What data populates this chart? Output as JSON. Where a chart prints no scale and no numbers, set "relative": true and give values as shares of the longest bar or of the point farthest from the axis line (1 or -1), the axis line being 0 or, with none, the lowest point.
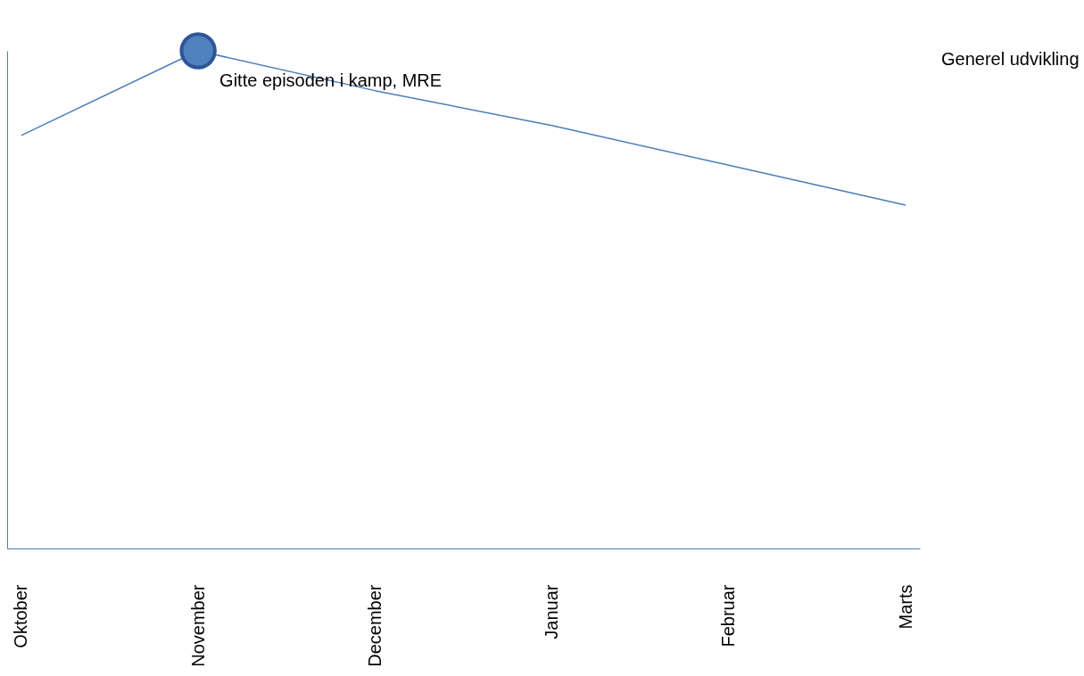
{
  "chart_data": {
    "type": "line",
    "relative": true,
    "categories": [
      "Oktober",
      "November",
      "December",
      "Januar",
      "Februar",
      "Marts"
    ],
    "series": [
      {
        "name": "Generel udvikling",
        "color": "#4a7ebb",
        "values": [
          0.83,
          1,
          0.92,
          0.85,
          0.77,
          0.69
        ]
      },
      {
        "type": "scatter",
        "marker": "circle",
        "color": "#4f81bd",
        "x": [
          "November"
        ],
        "values": [
          1
        ]
      }
    ],
    "annotations": [
      {
        "text": "Gitte episoden i kamp, MRE",
        "x": "November",
        "y": 1
      }
    ],
    "legend": "right",
    "grid": false,
    "marker": "none",
    "line_style": "solid"
  }
}
